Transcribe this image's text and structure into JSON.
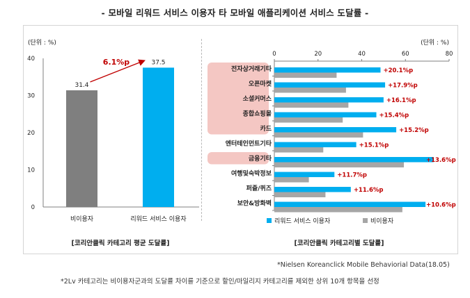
{
  "title": "- 모바일 리워드 서비스 이용자 타 모바일 애플리케이션 서비스 도달률 -",
  "notes": [
    "*Nielsen Koreanclick Mobile Behaviorial Data(18.05)",
    "*2Lv 카테고리는 비이용자군과의 도달률 차이를 기준으로 할인/마일리지 카테고리를 제외한 상위 10개 항목을 선정"
  ],
  "colors": {
    "blue": "#00aeef",
    "gray": "#a6a6a6",
    "gray_dark": "#7f7f7f",
    "red": "#c00000",
    "highlight": "#f4c7c3"
  },
  "chart_data": [
    {
      "type": "bar",
      "title": "[코리안클릭 카테고리 평균 도달률]",
      "unit_label": "(단위 : %)",
      "categories": [
        "비이용자",
        "리워드 서비스 이용자"
      ],
      "values": [
        31.4,
        37.5
      ],
      "value_labels": [
        "31.4",
        "37.5"
      ],
      "ylim": [
        0,
        40
      ],
      "yticks": [
        0,
        10,
        20,
        30,
        40
      ],
      "annotation": "6.1%p"
    },
    {
      "type": "bar",
      "orientation": "horizontal",
      "title": "[코리안클릭 카테고리별 도달률]",
      "unit_label": "(단위 : %)",
      "xlim": [
        0,
        80
      ],
      "xticks": [
        0,
        20,
        40,
        60,
        80
      ],
      "categories": [
        "전자상거래기타",
        "오픈마켓",
        "소셜커머스",
        "종합쇼핑몰",
        "카드",
        "엔터테인먼트기타",
        "금융기타",
        "여행및숙박정보",
        "퍼즐/퀴즈",
        "보안&방화벽"
      ],
      "highlighted": [
        "전자상거래기타",
        "오픈마켓",
        "소셜커머스",
        "종합쇼핑몰",
        "카드",
        "금융기타"
      ],
      "series": [
        {
          "name": "리워드 서비스 이용자",
          "values": [
            48.6,
            50.7,
            50.0,
            46.7,
            55.8,
            37.5,
            72.9,
            27.5,
            35.0,
            69.2
          ]
        },
        {
          "name": "비이용자",
          "values": [
            28.5,
            32.8,
            33.9,
            31.3,
            40.6,
            22.4,
            59.3,
            15.8,
            23.4,
            58.6
          ]
        }
      ],
      "diff_labels": [
        "+20.1%p",
        "+17.9%p",
        "+16.1%p",
        "+15.4%p",
        "+15.2%p",
        "+15.1%p",
        "+13.6%p",
        "+11.7%p",
        "+11.6%p",
        "+10.6%p"
      ]
    }
  ]
}
